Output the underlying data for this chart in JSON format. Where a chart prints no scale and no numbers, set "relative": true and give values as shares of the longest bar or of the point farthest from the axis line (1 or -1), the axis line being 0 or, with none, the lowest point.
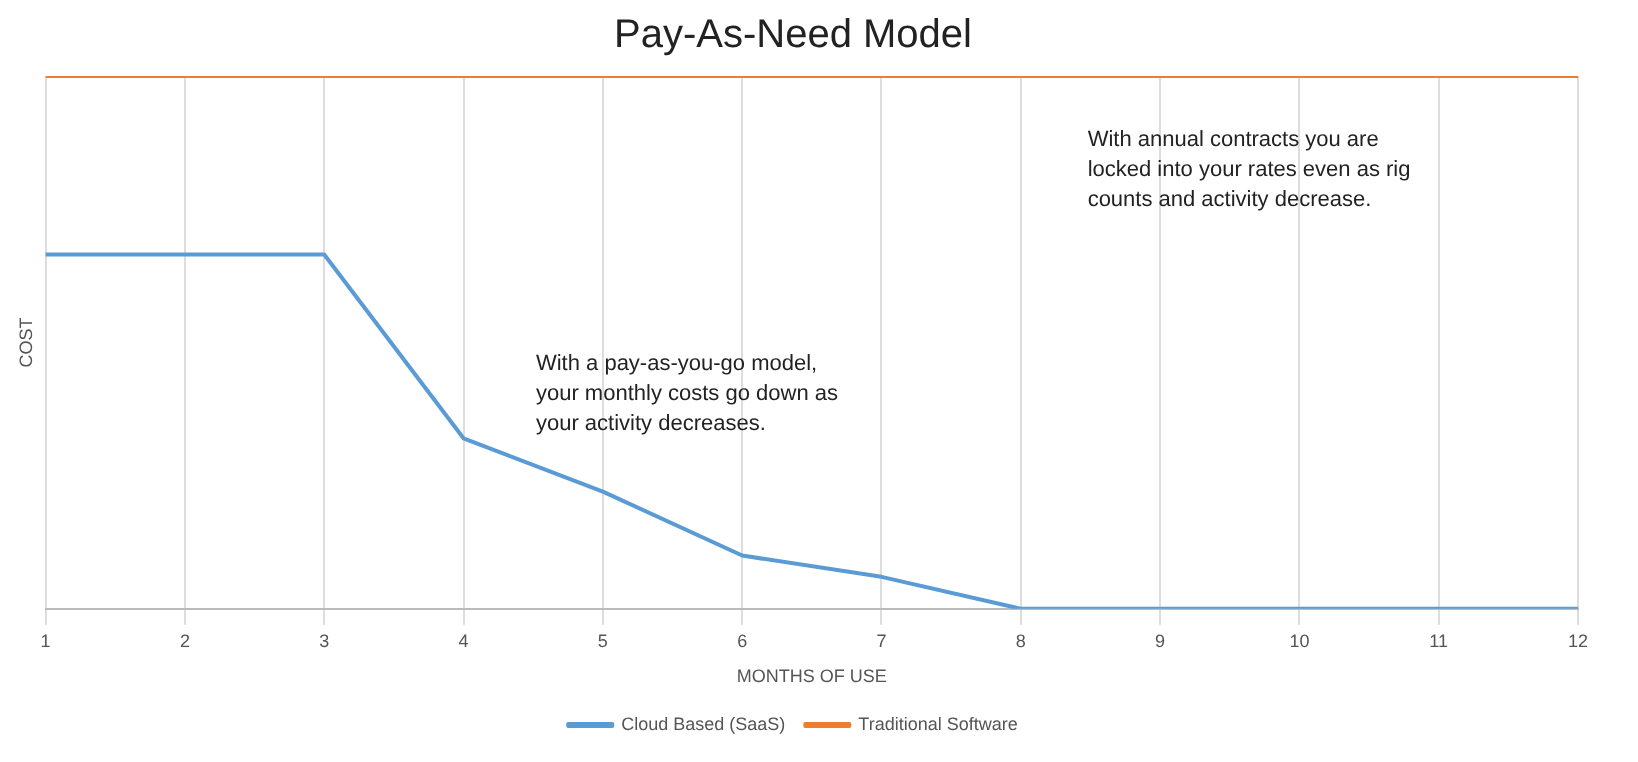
{
  "chart_data": {
    "type": "line",
    "title": "Pay-As-Need Model",
    "xlabel": "MONTHS OF USE",
    "ylabel": "COST",
    "categories": [
      "1",
      "2",
      "3",
      "4",
      "5",
      "6",
      "7",
      "8",
      "9",
      "10",
      "11",
      "12"
    ],
    "relative": true,
    "series": [
      {
        "name": "Cloud Based (SaaS)",
        "color": "#5b9bd5",
        "values": [
          0.665,
          0.665,
          0.665,
          0.32,
          0.22,
          0.1,
          0.06,
          0,
          0,
          0,
          0,
          0
        ]
      },
      {
        "name": "Traditional Software",
        "color": "#ed7d31",
        "values": [
          1,
          1,
          1,
          1,
          1,
          1,
          1,
          1,
          1,
          1,
          1,
          1
        ]
      }
    ],
    "annotations": [
      "With a pay-as-you-go model, your monthly costs go down as your activity decreases.",
      "With annual contracts you are locked into your rates even as rig counts and activity decrease."
    ],
    "grid": "x",
    "legend": "bottom",
    "marker": "none",
    "line_style": "solid"
  }
}
